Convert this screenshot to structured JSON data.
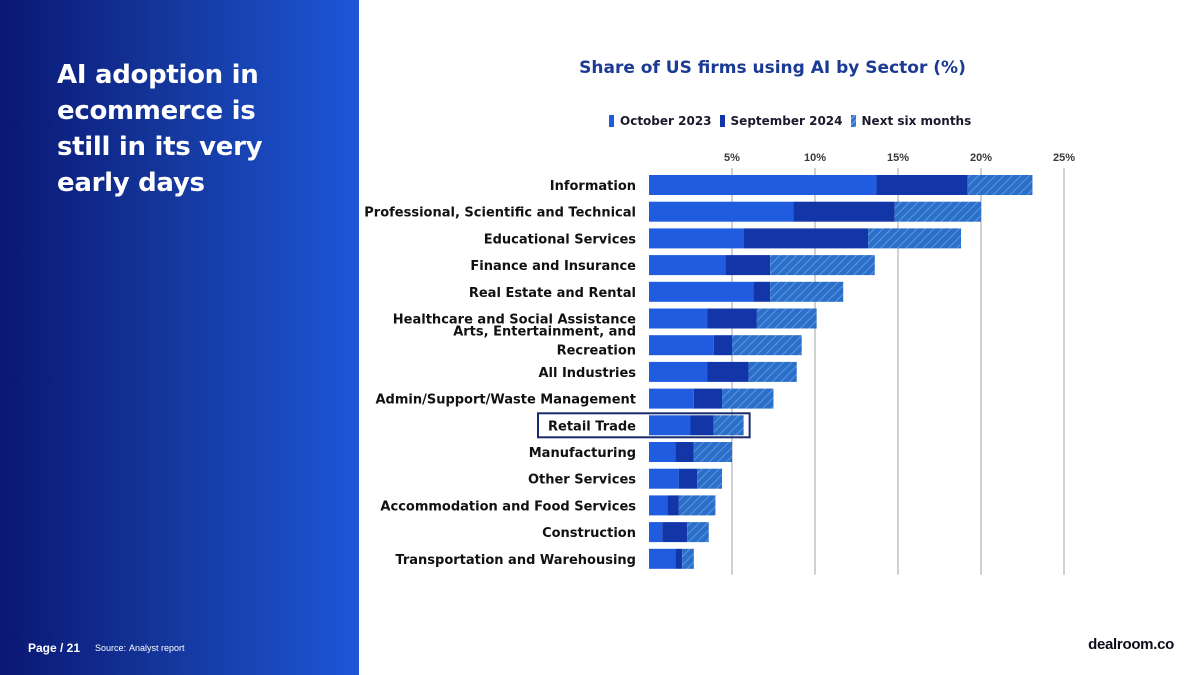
{
  "headline": "AI adoption in ecommerce is still in its very early days",
  "footer": {
    "page": "Page / 21",
    "source_label": "Source:",
    "source_value": "Analyst report"
  },
  "brand": "dealroom.co",
  "colors": {
    "oct2023": "#1f5ce0",
    "sep2024": "#1235a8",
    "next6": "#2a6fc9",
    "highlight_border": "#1a2b6b",
    "grid": "#d0d0d0"
  },
  "chart_data": {
    "type": "bar",
    "orientation": "horizontal",
    "stacked": true,
    "title": "Share of US firms using AI by Sector (%)",
    "xlabel": "",
    "ylabel": "",
    "xlim": [
      0,
      25
    ],
    "xticks": [
      5,
      10,
      15,
      20,
      25
    ],
    "xtick_labels": [
      "5%",
      "10%",
      "15%",
      "20%",
      "25%"
    ],
    "gridlines": true,
    "legend_position": "top",
    "highlight_category": "Retail Trade",
    "categories": [
      [
        "Information"
      ],
      [
        "Professional, Scientific and Technical"
      ],
      [
        "Educational Services"
      ],
      [
        "Finance and Insurance"
      ],
      [
        "Real Estate and Rental"
      ],
      [
        "Healthcare and Social Assistance"
      ],
      [
        "Arts, Entertainment, and",
        "Recreation"
      ],
      [
        "All Industries"
      ],
      [
        "Admin/Support/Waste Management"
      ],
      [
        "Retail Trade"
      ],
      [
        "Manufacturing"
      ],
      [
        "Other Services"
      ],
      [
        "Accommodation and Food Services"
      ],
      [
        "Construction"
      ],
      [
        "Transportation and Warehousing"
      ]
    ],
    "series": [
      {
        "name": "October 2023",
        "values": [
          13.7,
          8.7,
          5.7,
          4.6,
          6.3,
          3.5,
          3.9,
          3.5,
          2.7,
          2.5,
          1.6,
          1.8,
          1.1,
          0.8,
          1.6
        ]
      },
      {
        "name": "September 2024",
        "values": [
          5.5,
          6.1,
          7.5,
          2.7,
          1.0,
          3.0,
          1.1,
          2.5,
          1.7,
          1.4,
          1.1,
          1.1,
          0.7,
          1.5,
          0.4
        ]
      },
      {
        "name": "Next six months",
        "values": [
          3.9,
          5.2,
          5.6,
          6.3,
          4.4,
          3.6,
          4.2,
          2.9,
          3.1,
          1.8,
          2.3,
          1.5,
          2.2,
          1.3,
          0.7
        ]
      }
    ]
  }
}
